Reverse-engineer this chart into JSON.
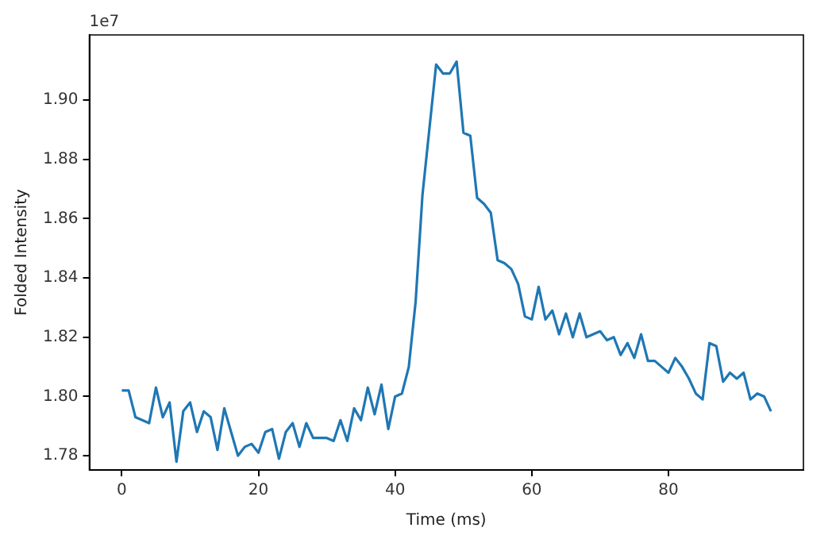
{
  "chart_data": {
    "type": "line",
    "xlabel": "Time (ms)",
    "ylabel": "Folded Intensity",
    "annotations": [
      "1e7"
    ],
    "x": [
      0,
      1,
      2,
      3,
      4,
      5,
      6,
      7,
      8,
      9,
      10,
      11,
      12,
      13,
      14,
      15,
      16,
      17,
      18,
      19,
      20,
      21,
      22,
      23,
      24,
      25,
      26,
      27,
      28,
      29,
      30,
      31,
      32,
      33,
      34,
      35,
      36,
      37,
      38,
      39,
      40,
      41,
      42,
      43,
      44,
      45,
      46,
      47,
      48,
      49,
      50,
      51,
      52,
      53,
      54,
      55,
      56,
      57,
      58,
      59,
      60,
      61,
      62,
      63,
      64,
      65,
      66,
      67,
      68,
      69,
      70,
      71,
      72,
      73,
      74,
      75,
      76,
      77,
      78,
      79,
      80,
      81,
      82,
      83,
      84,
      85,
      86,
      87,
      88,
      89,
      90,
      91,
      92,
      93,
      94,
      95
    ],
    "series": [
      {
        "color": "#1f77b4",
        "values": [
          1.802,
          1.802,
          1.793,
          1.792,
          1.791,
          1.803,
          1.793,
          1.798,
          1.778,
          1.795,
          1.798,
          1.788,
          1.795,
          1.793,
          1.782,
          1.796,
          1.788,
          1.78,
          1.783,
          1.784,
          1.781,
          1.788,
          1.789,
          1.779,
          1.788,
          1.791,
          1.783,
          1.791,
          1.786,
          1.786,
          1.786,
          1.785,
          1.792,
          1.785,
          1.796,
          1.792,
          1.803,
          1.794,
          1.804,
          1.789,
          1.8,
          1.801,
          1.81,
          1.832,
          1.868,
          1.89,
          1.912,
          1.909,
          1.909,
          1.913,
          1.889,
          1.888,
          1.867,
          1.865,
          1.862,
          1.846,
          1.845,
          1.843,
          1.838,
          1.827,
          1.826,
          1.837,
          1.826,
          1.829,
          1.821,
          1.828,
          1.82,
          1.828,
          1.82,
          1.821,
          1.822,
          1.819,
          1.82,
          1.814,
          1.818,
          1.813,
          1.821,
          1.812,
          1.812,
          1.81,
          1.808,
          1.813,
          1.81,
          1.806,
          1.801,
          1.799,
          1.818,
          1.817,
          1.805,
          1.808,
          1.806,
          1.808,
          1.799,
          1.801,
          1.8,
          1.795
        ]
      }
    ],
    "xlim": [
      -4.75,
      99.75
    ],
    "ylim": [
      1.7752,
      1.922
    ],
    "xticks": [
      0,
      20,
      40,
      60,
      80
    ],
    "yticks": [
      {
        "value": 1.78,
        "label": "1.78"
      },
      {
        "value": 1.8,
        "label": "1.80"
      },
      {
        "value": 1.82,
        "label": "1.82"
      },
      {
        "value": 1.84,
        "label": "1.84"
      },
      {
        "value": 1.86,
        "label": "1.86"
      },
      {
        "value": 1.88,
        "label": "1.88"
      },
      {
        "value": 1.9,
        "label": "1.90"
      }
    ],
    "grid": false,
    "legend": false,
    "line_style": "solid",
    "marker": "none"
  }
}
